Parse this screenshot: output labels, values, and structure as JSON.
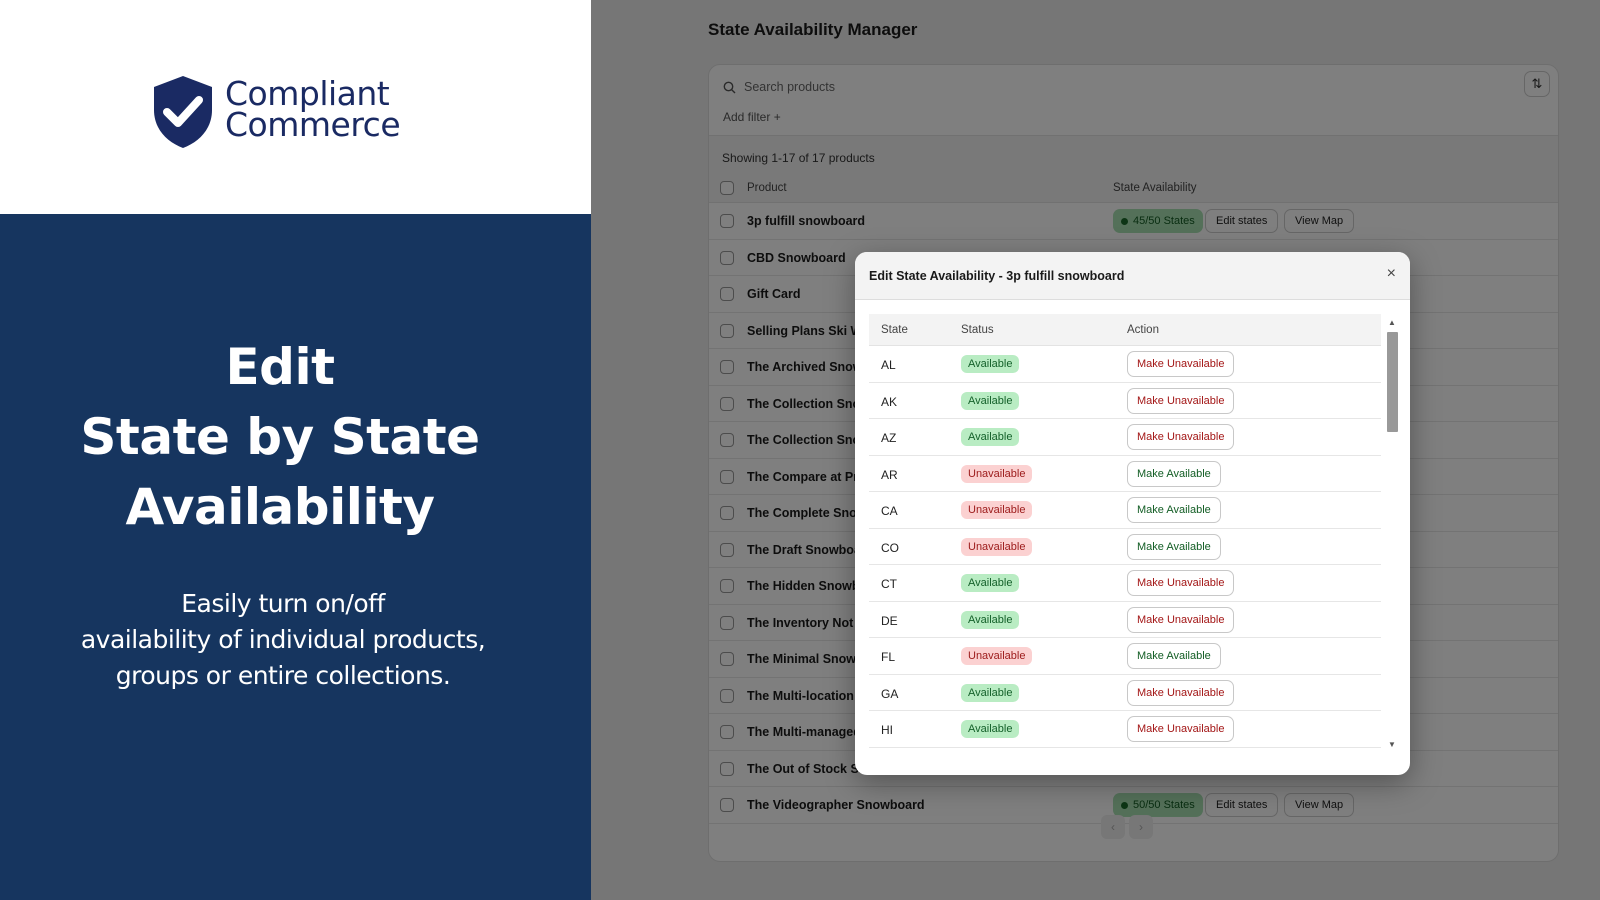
{
  "brand": {
    "logo_line1": "Compliant",
    "logo_line2": "Commerce",
    "color": "#1a2a63"
  },
  "hero": {
    "title_line1": "Edit",
    "title_line2": "State by State",
    "title_line3": "Availability",
    "sub_line1": "Easily turn on/off",
    "sub_line2": "availability of individual products,",
    "sub_line3": "groups or entire collections."
  },
  "app": {
    "title": "State Availability Manager",
    "search_placeholder": "Search products",
    "add_filter": "Add filter +",
    "showing": "Showing 1-17 of 17 products",
    "col_product": "Product",
    "col_state": "State Availability",
    "products": [
      {
        "name": "3p fulfill snowboard",
        "states": "45/50 States",
        "edit": "Edit states",
        "map": "View Map"
      },
      {
        "name": "CBD Snowboard"
      },
      {
        "name": "Gift Card"
      },
      {
        "name": "Selling Plans Ski Wa"
      },
      {
        "name": "The Archived Snowb"
      },
      {
        "name": "The Collection Snow"
      },
      {
        "name": "The Collection Snow"
      },
      {
        "name": "The Compare at Pric"
      },
      {
        "name": "The Complete Snow"
      },
      {
        "name": "The Draft Snowboar"
      },
      {
        "name": "The Hidden Snowbo"
      },
      {
        "name": "The Inventory Not T"
      },
      {
        "name": "The Minimal Snowb"
      },
      {
        "name": "The Multi-location S"
      },
      {
        "name": "The Multi-managed"
      },
      {
        "name": "The Out of Stock Snowboard"
      },
      {
        "name": "The Videographer Snowboard",
        "states": "50/50 States",
        "edit": "Edit states",
        "map": "View Map"
      }
    ]
  },
  "modal": {
    "title": "Edit State Availability - 3p fulfill snowboard",
    "close": "×",
    "col_state": "State",
    "col_status": "Status",
    "col_action": "Action",
    "rows": [
      {
        "code": "AL",
        "status": "Available",
        "action": "Make Unavailable"
      },
      {
        "code": "AK",
        "status": "Available",
        "action": "Make Unavailable"
      },
      {
        "code": "AZ",
        "status": "Available",
        "action": "Make Unavailable"
      },
      {
        "code": "AR",
        "status": "Unavailable",
        "action": "Make Available"
      },
      {
        "code": "CA",
        "status": "Unavailable",
        "action": "Make Available"
      },
      {
        "code": "CO",
        "status": "Unavailable",
        "action": "Make Available"
      },
      {
        "code": "CT",
        "status": "Available",
        "action": "Make Unavailable"
      },
      {
        "code": "DE",
        "status": "Available",
        "action": "Make Unavailable"
      },
      {
        "code": "FL",
        "status": "Unavailable",
        "action": "Make Available"
      },
      {
        "code": "GA",
        "status": "Available",
        "action": "Make Unavailable"
      },
      {
        "code": "HI",
        "status": "Available",
        "action": "Make Unavailable"
      }
    ]
  }
}
